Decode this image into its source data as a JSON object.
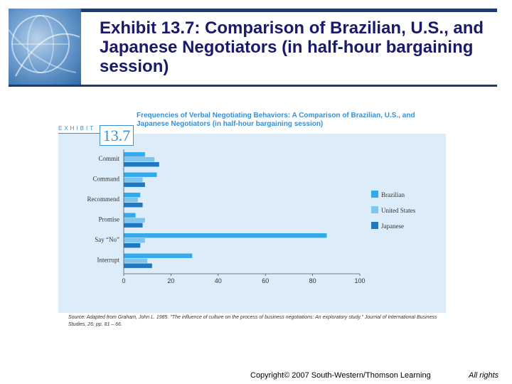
{
  "slide": {
    "title": "Exhibit 13.7: Comparison of Brazilian, U.S., and Japanese Negotiators (in half-hour bargaining session)"
  },
  "exhibit": {
    "label": "EXHIBIT",
    "number": "13.7",
    "source": "Source: Adapted from Graham, John L. 1985. \"The influence of culture on the process of business negotiations: An exploratory study.\" Journal of International Business Studies, 26: pp. 81 – 66."
  },
  "chart_data": {
    "type": "bar",
    "orientation": "horizontal",
    "title": "Frequencies of Verbal Negotiating Behaviors: A Comparison of Brazilian, U.S., and Japanese Negotiators (in half-hour bargaining session)",
    "categories": [
      "Commit",
      "Command",
      "Recommend",
      "Promise",
      "Say “No”",
      "Interrupt"
    ],
    "series": [
      {
        "name": "Brazilian",
        "color": "#33aaee",
        "values": [
          9,
          14,
          7,
          5,
          86,
          29
        ]
      },
      {
        "name": "United States",
        "color": "#7fc6ee",
        "values": [
          13,
          8,
          6,
          9,
          9,
          10
        ]
      },
      {
        "name": "Japanese",
        "color": "#1f78c2",
        "values": [
          15,
          9,
          8,
          8,
          7,
          12
        ]
      }
    ],
    "xticks": [
      0,
      20,
      40,
      60,
      80,
      100
    ],
    "xlim": [
      0,
      100
    ],
    "grid": false,
    "legend": "right"
  },
  "footer": {
    "copyright": "Copyright© 2007 South-Western/Thomson Learning",
    "rights": "All rights"
  }
}
